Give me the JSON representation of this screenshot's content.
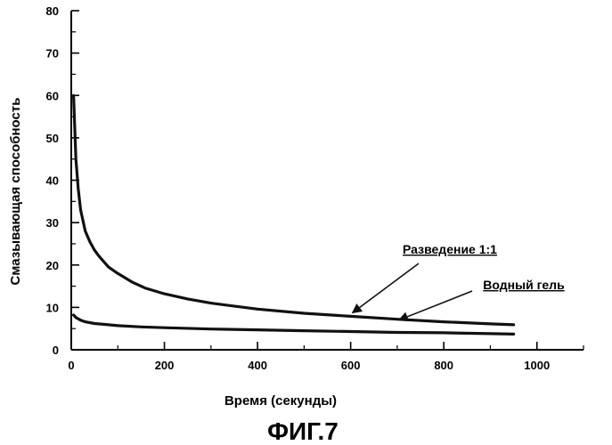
{
  "chart_data": {
    "type": "line",
    "xlabel": "Время (секунды)",
    "ylabel": "Смазывающая способность",
    "caption": "ФИГ.7",
    "xlim": [
      0,
      1100
    ],
    "ylim": [
      0,
      80
    ],
    "x_ticks": [
      0,
      200,
      400,
      600,
      800,
      1000
    ],
    "y_ticks": [
      0,
      10,
      20,
      30,
      40,
      50,
      60,
      70,
      80
    ],
    "grid": false,
    "series": [
      {
        "name": "Разведение 1:1",
        "x": [
          5,
          10,
          15,
          20,
          30,
          40,
          50,
          60,
          80,
          100,
          130,
          160,
          200,
          250,
          300,
          400,
          500,
          600,
          700,
          800,
          900,
          950
        ],
        "y": [
          60,
          45,
          38,
          33,
          28,
          25.5,
          23.5,
          22,
          19.5,
          18,
          16,
          14.5,
          13.2,
          12,
          11,
          9.6,
          8.6,
          7.9,
          7.2,
          6.6,
          6.1,
          5.9
        ],
        "color": "#111111"
      },
      {
        "name": "Водный гель",
        "x": [
          5,
          10,
          20,
          30,
          50,
          80,
          100,
          150,
          200,
          300,
          400,
          500,
          600,
          700,
          800,
          900,
          950
        ],
        "y": [
          8.2,
          7.6,
          7,
          6.6,
          6.2,
          5.9,
          5.7,
          5.4,
          5.2,
          4.9,
          4.7,
          4.5,
          4.3,
          4.1,
          4,
          3.8,
          3.7
        ],
        "color": "#111111"
      }
    ],
    "annotations": [
      {
        "text": "Разведение 1:1",
        "series": 0,
        "point_x": 600,
        "point_y": 8.3
      },
      {
        "text": "Водный гель",
        "series": 1,
        "point_x": 700,
        "point_y": 6.6
      }
    ]
  }
}
